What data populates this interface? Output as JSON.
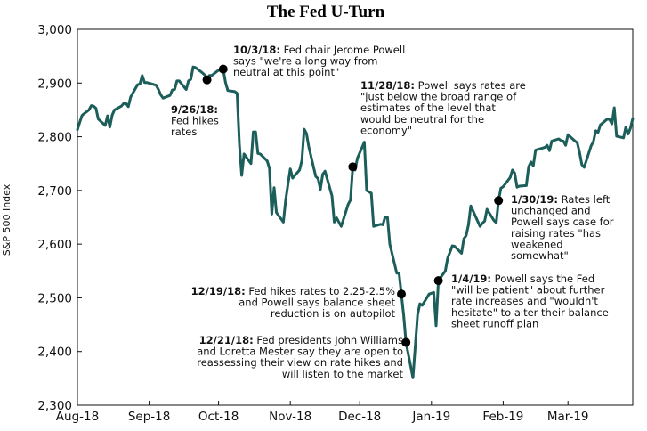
{
  "chart_data": {
    "type": "line",
    "title": "The Fed U-Turn",
    "ylabel": "S&P 500 Index",
    "xlabel": "",
    "ylim": [
      2300,
      3000
    ],
    "yticks": [
      2300,
      2400,
      2500,
      2600,
      2700,
      2800,
      2900,
      3000
    ],
    "ytick_labels": [
      "2,300",
      "2,400",
      "2,500",
      "2,600",
      "2,700",
      "2,800",
      "2,900",
      "3,000"
    ],
    "xlim": [
      "2018-08-01",
      "2019-03-29"
    ],
    "xticks": [
      {
        "date": "2018-08-01",
        "label": "Aug-18"
      },
      {
        "date": "2018-09-01",
        "label": "Sep-18"
      },
      {
        "date": "2018-10-01",
        "label": "Oct-18"
      },
      {
        "date": "2018-11-01",
        "label": "Nov-18"
      },
      {
        "date": "2018-12-01",
        "label": "Dec-18"
      },
      {
        "date": "2019-01-01",
        "label": "Jan-19"
      },
      {
        "date": "2019-02-01",
        "label": "Feb-19"
      },
      {
        "date": "2019-03-01",
        "label": "Mar-19"
      }
    ],
    "grid": false,
    "line_color": "#1b5e5a",
    "series": [
      {
        "points": [
          [
            "2018-08-01",
            2813
          ],
          [
            "2018-08-02",
            2827
          ],
          [
            "2018-08-03",
            2840
          ],
          [
            "2018-08-06",
            2850
          ],
          [
            "2018-08-07",
            2858
          ],
          [
            "2018-08-08",
            2857
          ],
          [
            "2018-08-09",
            2853
          ],
          [
            "2018-08-10",
            2833
          ],
          [
            "2018-08-13",
            2821
          ],
          [
            "2018-08-14",
            2839
          ],
          [
            "2018-08-15",
            2818
          ],
          [
            "2018-08-16",
            2840
          ],
          [
            "2018-08-17",
            2850
          ],
          [
            "2018-08-20",
            2857
          ],
          [
            "2018-08-21",
            2862
          ],
          [
            "2018-08-22",
            2862
          ],
          [
            "2018-08-23",
            2856
          ],
          [
            "2018-08-24",
            2874
          ],
          [
            "2018-08-27",
            2897
          ],
          [
            "2018-08-28",
            2898
          ],
          [
            "2018-08-29",
            2914
          ],
          [
            "2018-08-30",
            2901
          ],
          [
            "2018-08-31",
            2901
          ],
          [
            "2018-09-04",
            2896
          ],
          [
            "2018-09-05",
            2888
          ],
          [
            "2018-09-06",
            2878
          ],
          [
            "2018-09-07",
            2872
          ],
          [
            "2018-09-10",
            2877
          ],
          [
            "2018-09-11",
            2887
          ],
          [
            "2018-09-12",
            2888
          ],
          [
            "2018-09-13",
            2904
          ],
          [
            "2018-09-14",
            2904
          ],
          [
            "2018-09-17",
            2888
          ],
          [
            "2018-09-18",
            2904
          ],
          [
            "2018-09-19",
            2907
          ],
          [
            "2018-09-20",
            2930
          ],
          [
            "2018-09-21",
            2929
          ],
          [
            "2018-09-24",
            2919
          ],
          [
            "2018-09-25",
            2915
          ],
          [
            "2018-09-26",
            2906
          ],
          [
            "2018-09-27",
            2914
          ],
          [
            "2018-09-28",
            2914
          ],
          [
            "2018-10-01",
            2924
          ],
          [
            "2018-10-02",
            2923
          ],
          [
            "2018-10-03",
            2926
          ],
          [
            "2018-10-04",
            2901
          ],
          [
            "2018-10-05",
            2886
          ],
          [
            "2018-10-08",
            2884
          ],
          [
            "2018-10-09",
            2881
          ],
          [
            "2018-10-10",
            2786
          ],
          [
            "2018-10-11",
            2728
          ],
          [
            "2018-10-12",
            2768
          ],
          [
            "2018-10-15",
            2750
          ],
          [
            "2018-10-16",
            2809
          ],
          [
            "2018-10-17",
            2809
          ],
          [
            "2018-10-18",
            2769
          ],
          [
            "2018-10-19",
            2768
          ],
          [
            "2018-10-22",
            2755
          ],
          [
            "2018-10-23",
            2741
          ],
          [
            "2018-10-24",
            2656
          ],
          [
            "2018-10-25",
            2705
          ],
          [
            "2018-10-26",
            2659
          ],
          [
            "2018-10-29",
            2641
          ],
          [
            "2018-10-30",
            2682
          ],
          [
            "2018-10-31",
            2712
          ],
          [
            "2018-11-01",
            2740
          ],
          [
            "2018-11-02",
            2723
          ],
          [
            "2018-11-05",
            2738
          ],
          [
            "2018-11-06",
            2756
          ],
          [
            "2018-11-07",
            2814
          ],
          [
            "2018-11-08",
            2806
          ],
          [
            "2018-11-09",
            2781
          ],
          [
            "2018-11-12",
            2726
          ],
          [
            "2018-11-13",
            2722
          ],
          [
            "2018-11-14",
            2702
          ],
          [
            "2018-11-15",
            2730
          ],
          [
            "2018-11-16",
            2736
          ],
          [
            "2018-11-19",
            2690
          ],
          [
            "2018-11-20",
            2641
          ],
          [
            "2018-11-21",
            2649
          ],
          [
            "2018-11-23",
            2633
          ],
          [
            "2018-11-26",
            2674
          ],
          [
            "2018-11-27",
            2682
          ],
          [
            "2018-11-28",
            2744
          ],
          [
            "2018-11-29",
            2738
          ],
          [
            "2018-11-30",
            2760
          ],
          [
            "2018-12-03",
            2790
          ],
          [
            "2018-12-04",
            2700
          ],
          [
            "2018-12-06",
            2695
          ],
          [
            "2018-12-07",
            2633
          ],
          [
            "2018-12-10",
            2637
          ],
          [
            "2018-12-11",
            2636
          ],
          [
            "2018-12-12",
            2651
          ],
          [
            "2018-12-13",
            2650
          ],
          [
            "2018-12-14",
            2600
          ],
          [
            "2018-12-17",
            2546
          ],
          [
            "2018-12-18",
            2546
          ],
          [
            "2018-12-19",
            2507
          ],
          [
            "2018-12-20",
            2467
          ],
          [
            "2018-12-21",
            2417
          ],
          [
            "2018-12-24",
            2351
          ],
          [
            "2018-12-26",
            2468
          ],
          [
            "2018-12-27",
            2489
          ],
          [
            "2018-12-28",
            2486
          ],
          [
            "2018-12-31",
            2507
          ],
          [
            "2019-01-02",
            2510
          ],
          [
            "2019-01-03",
            2448
          ],
          [
            "2019-01-04",
            2532
          ],
          [
            "2019-01-07",
            2550
          ],
          [
            "2019-01-08",
            2574
          ],
          [
            "2019-01-09",
            2585
          ],
          [
            "2019-01-10",
            2597
          ],
          [
            "2019-01-11",
            2596
          ],
          [
            "2019-01-14",
            2583
          ],
          [
            "2019-01-15",
            2610
          ],
          [
            "2019-01-16",
            2616
          ],
          [
            "2019-01-17",
            2636
          ],
          [
            "2019-01-18",
            2671
          ],
          [
            "2019-01-22",
            2633
          ],
          [
            "2019-01-23",
            2639
          ],
          [
            "2019-01-24",
            2643
          ],
          [
            "2019-01-25",
            2665
          ],
          [
            "2019-01-28",
            2644
          ],
          [
            "2019-01-29",
            2640
          ],
          [
            "2019-01-30",
            2681
          ],
          [
            "2019-01-31",
            2704
          ],
          [
            "2019-02-01",
            2707
          ],
          [
            "2019-02-04",
            2724
          ],
          [
            "2019-02-05",
            2738
          ],
          [
            "2019-02-06",
            2732
          ],
          [
            "2019-02-07",
            2706
          ],
          [
            "2019-02-08",
            2708
          ],
          [
            "2019-02-11",
            2709
          ],
          [
            "2019-02-12",
            2744
          ],
          [
            "2019-02-13",
            2753
          ],
          [
            "2019-02-14",
            2746
          ],
          [
            "2019-02-15",
            2775
          ],
          [
            "2019-02-19",
            2780
          ],
          [
            "2019-02-20",
            2784
          ],
          [
            "2019-02-21",
            2774
          ],
          [
            "2019-02-22",
            2792
          ],
          [
            "2019-02-25",
            2796
          ],
          [
            "2019-02-26",
            2793
          ],
          [
            "2019-02-27",
            2792
          ],
          [
            "2019-02-28",
            2784
          ],
          [
            "2019-03-01",
            2804
          ],
          [
            "2019-03-04",
            2792
          ],
          [
            "2019-03-05",
            2789
          ],
          [
            "2019-03-06",
            2771
          ],
          [
            "2019-03-07",
            2748
          ],
          [
            "2019-03-08",
            2743
          ],
          [
            "2019-03-11",
            2783
          ],
          [
            "2019-03-12",
            2791
          ],
          [
            "2019-03-13",
            2811
          ],
          [
            "2019-03-14",
            2808
          ],
          [
            "2019-03-15",
            2822
          ],
          [
            "2019-03-18",
            2833
          ],
          [
            "2019-03-19",
            2832
          ],
          [
            "2019-03-20",
            2824
          ],
          [
            "2019-03-21",
            2854
          ],
          [
            "2019-03-22",
            2801
          ],
          [
            "2019-03-25",
            2798
          ],
          [
            "2019-03-26",
            2818
          ],
          [
            "2019-03-27",
            2805
          ],
          [
            "2019-03-28",
            2816
          ],
          [
            "2019-03-29",
            2834
          ]
        ]
      }
    ],
    "annotations": [
      {
        "date": "2018-09-26",
        "value": 2906,
        "bold": "9/26/18:",
        "lines": [
          "9/26/18:",
          "Fed hikes",
          "rates"
        ]
      },
      {
        "date": "2018-10-03",
        "value": 2926,
        "bold": "10/3/18:",
        "lines": [
          "10/3/18: Fed chair Jerome Powell",
          "says \"we're a long way from",
          "neutral at this point\""
        ]
      },
      {
        "date": "2018-11-28",
        "value": 2744,
        "bold": "11/28/18:",
        "lines": [
          "11/28/18: Powell says rates are",
          "\"just below the broad range of",
          "estimates of the level that",
          "would be neutral for the",
          "economy\""
        ]
      },
      {
        "date": "2018-12-19",
        "value": 2507,
        "bold": "12/19/18:",
        "lines": [
          "12/19/18: Fed hikes rates to 2.25-2.5%",
          "and Powell says balance sheet",
          "reduction is on autopilot"
        ]
      },
      {
        "date": "2018-12-21",
        "value": 2417,
        "bold": "12/21/18:",
        "lines": [
          "12/21/18: Fed presidents John Williams",
          "and Loretta Mester say they are open to",
          "reassessing their view on rate hikes and",
          "will listen to the market"
        ]
      },
      {
        "date": "2019-01-04",
        "value": 2532,
        "bold": "1/4/19:",
        "lines": [
          "1/4/19: Powell says the Fed",
          "\"will be patient\" about further",
          "rate increases and \"wouldn't",
          "hesitate\" to alter their balance",
          "sheet runoff plan"
        ]
      },
      {
        "date": "2019-01-30",
        "value": 2681,
        "bold": "1/30/19:",
        "lines": [
          "1/30/19: Rates left",
          "unchanged and",
          "Powell says case for",
          "raising rates \"has",
          "weakened",
          "somewhat\""
        ]
      }
    ]
  }
}
